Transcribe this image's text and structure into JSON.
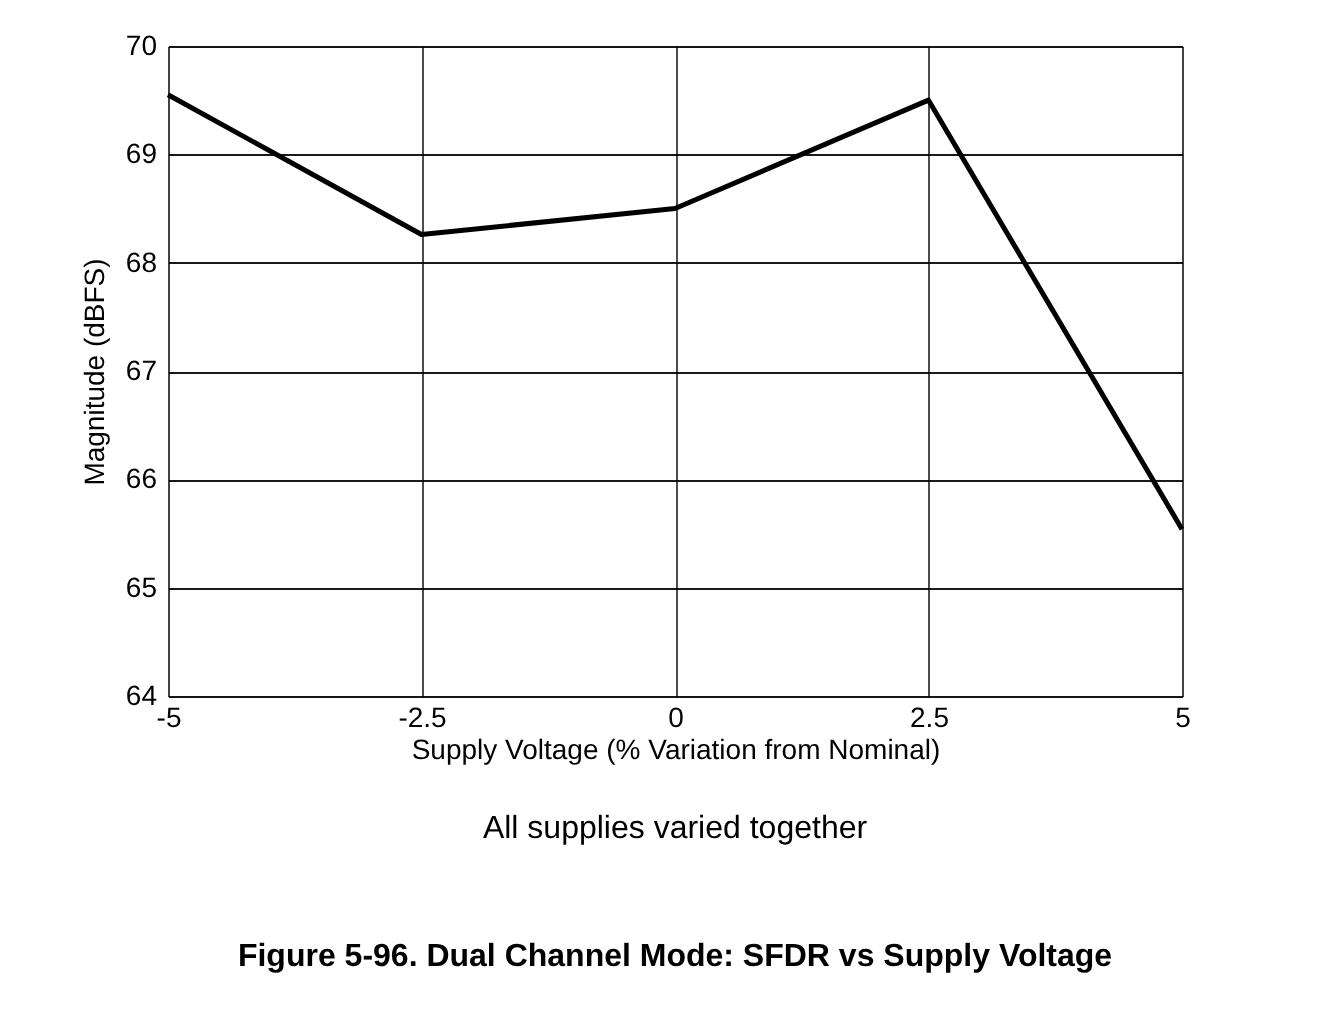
{
  "chart_data": {
    "type": "line",
    "title": "Figure 5-96. Dual Channel Mode: SFDR vs Supply Voltage",
    "xlabel": "Supply Voltage  (% Variation from Nominal)",
    "ylabel": "Magnitude  (dBFS)",
    "annotations": [
      "All supplies varied together"
    ],
    "x": [
      -5,
      -2.5,
      0,
      2.5,
      5
    ],
    "series": [
      {
        "color": "#000000",
        "values": [
          69.55,
          68.26,
          68.5,
          69.5,
          65.54
        ]
      }
    ],
    "xlim": [
      -5,
      5
    ],
    "xticks": [
      -5,
      -2.5,
      0,
      2.5,
      5
    ],
    "ylim": [
      64,
      70
    ],
    "yticks": [
      64,
      65,
      66,
      67,
      68,
      69,
      70
    ],
    "grid": true,
    "legend": false,
    "marker": "none",
    "line_style": "solid"
  }
}
